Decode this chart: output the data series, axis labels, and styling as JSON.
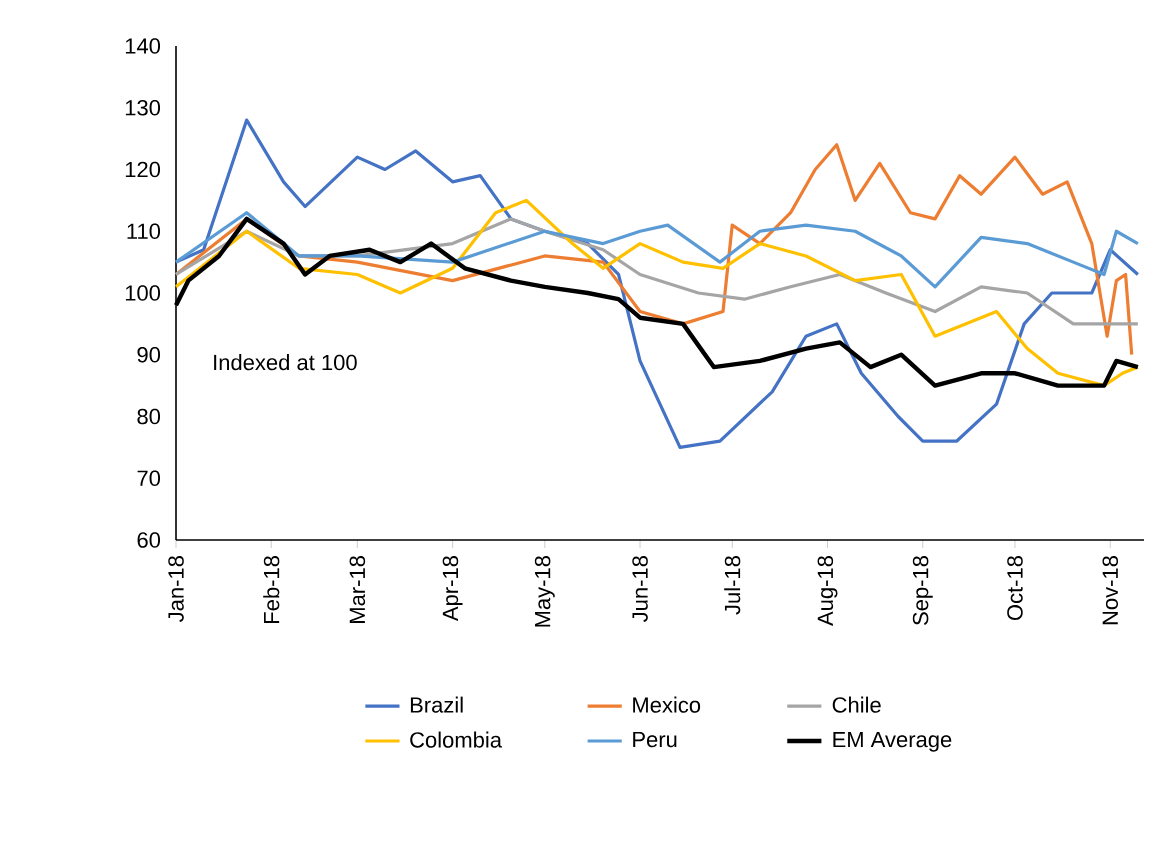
{
  "chart_data": {
    "type": "line",
    "annotations": [
      "Indexed at 100"
    ],
    "xlim": [
      "2018-01-01",
      "2018-11-12"
    ],
    "ylim": [
      60,
      140
    ],
    "yticks": [
      60,
      70,
      80,
      90,
      100,
      110,
      120,
      130,
      140
    ],
    "xticks": [
      {
        "value": "2018-01-01",
        "label": "Jan-18"
      },
      {
        "value": "2018-02-01",
        "label": "Feb-18"
      },
      {
        "value": "2018-03-01",
        "label": "Mar-18"
      },
      {
        "value": "2018-04-01",
        "label": "Apr-18"
      },
      {
        "value": "2018-05-01",
        "label": "May-18"
      },
      {
        "value": "2018-06-01",
        "label": "Jun-18"
      },
      {
        "value": "2018-07-01",
        "label": "Jul-18"
      },
      {
        "value": "2018-08-01",
        "label": "Aug-18"
      },
      {
        "value": "2018-09-01",
        "label": "Sep-18"
      },
      {
        "value": "2018-10-01",
        "label": "Oct-18"
      },
      {
        "value": "2018-11-01",
        "label": "Nov-18"
      }
    ],
    "grid": false,
    "legend": "bottom",
    "marker": "none",
    "line_style": "solid",
    "series": [
      {
        "name": "Brazil",
        "color": "#4472c4",
        "x": [
          "2018-01-01",
          "2018-01-10",
          "2018-01-24",
          "2018-02-05",
          "2018-02-12",
          "2018-03-01",
          "2018-03-10",
          "2018-03-20",
          "2018-04-01",
          "2018-04-10",
          "2018-04-20",
          "2018-05-01",
          "2018-05-15",
          "2018-05-25",
          "2018-06-01",
          "2018-06-14",
          "2018-06-27",
          "2018-07-14",
          "2018-07-25",
          "2018-08-04",
          "2018-08-12",
          "2018-08-24",
          "2018-09-01",
          "2018-09-12",
          "2018-09-25",
          "2018-10-04",
          "2018-10-13",
          "2018-10-26",
          "2018-11-01",
          "2018-11-10"
        ],
        "values": [
          105,
          107,
          128,
          118,
          114,
          122,
          120,
          123,
          118,
          119,
          112,
          110,
          108,
          103,
          89,
          75,
          76,
          84,
          93,
          95,
          87,
          80,
          76,
          76,
          82,
          95,
          100,
          100,
          107,
          103
        ]
      },
      {
        "name": "Mexico",
        "color": "#ed7d31",
        "x": [
          "2018-01-01",
          "2018-01-24",
          "2018-02-10",
          "2018-03-01",
          "2018-04-01",
          "2018-05-01",
          "2018-05-20",
          "2018-06-01",
          "2018-06-15",
          "2018-06-28",
          "2018-07-01",
          "2018-07-10",
          "2018-07-20",
          "2018-07-28",
          "2018-08-04",
          "2018-08-10",
          "2018-08-18",
          "2018-08-28",
          "2018-09-05",
          "2018-09-13",
          "2018-09-20",
          "2018-10-01",
          "2018-10-10",
          "2018-10-18",
          "2018-10-26",
          "2018-10-31",
          "2018-11-03",
          "2018-11-06",
          "2018-11-08"
        ],
        "values": [
          103,
          112,
          106,
          105,
          102,
          106,
          105,
          97,
          95,
          97,
          111,
          108,
          113,
          120,
          124,
          115,
          121,
          113,
          112,
          119,
          116,
          122,
          116,
          118,
          108,
          93,
          102,
          103,
          90
        ]
      },
      {
        "name": "Chile",
        "color": "#a5a5a5",
        "x": [
          "2018-01-01",
          "2018-01-24",
          "2018-02-10",
          "2018-03-01",
          "2018-04-01",
          "2018-04-20",
          "2018-05-01",
          "2018-05-20",
          "2018-06-01",
          "2018-06-20",
          "2018-07-05",
          "2018-07-20",
          "2018-08-05",
          "2018-08-20",
          "2018-09-05",
          "2018-09-20",
          "2018-10-05",
          "2018-10-20",
          "2018-11-03",
          "2018-11-10"
        ],
        "values": [
          103,
          110,
          106,
          106,
          108,
          112,
          110,
          107,
          103,
          100,
          99,
          101,
          103,
          100,
          97,
          101,
          100,
          95,
          95,
          95
        ]
      },
      {
        "name": "Colombia",
        "color": "#ffc000",
        "x": [
          "2018-01-01",
          "2018-01-24",
          "2018-02-10",
          "2018-03-01",
          "2018-03-15",
          "2018-04-01",
          "2018-04-15",
          "2018-04-25",
          "2018-05-10",
          "2018-05-20",
          "2018-06-01",
          "2018-06-15",
          "2018-06-28",
          "2018-07-10",
          "2018-07-25",
          "2018-08-10",
          "2018-08-25",
          "2018-09-05",
          "2018-09-15",
          "2018-09-25",
          "2018-10-05",
          "2018-10-15",
          "2018-10-30",
          "2018-11-05",
          "2018-11-10"
        ],
        "values": [
          101,
          110,
          104,
          103,
          100,
          104,
          113,
          115,
          108,
          104,
          108,
          105,
          104,
          108,
          106,
          102,
          103,
          93,
          95,
          97,
          91,
          87,
          85,
          87,
          88
        ]
      },
      {
        "name": "Peru",
        "color": "#5b9bd5",
        "x": [
          "2018-01-01",
          "2018-01-24",
          "2018-02-10",
          "2018-03-01",
          "2018-04-01",
          "2018-05-01",
          "2018-05-20",
          "2018-06-01",
          "2018-06-10",
          "2018-06-27",
          "2018-07-10",
          "2018-07-25",
          "2018-08-10",
          "2018-08-25",
          "2018-09-05",
          "2018-09-20",
          "2018-10-05",
          "2018-10-20",
          "2018-10-30",
          "2018-11-03",
          "2018-11-10"
        ],
        "values": [
          105,
          113,
          106,
          106,
          105,
          110,
          108,
          110,
          111,
          105,
          110,
          111,
          110,
          106,
          101,
          109,
          108,
          105,
          103,
          110,
          108
        ]
      },
      {
        "name": "EM Average",
        "color": "#000000",
        "x": [
          "2018-01-01",
          "2018-01-05",
          "2018-01-15",
          "2018-01-24",
          "2018-02-05",
          "2018-02-12",
          "2018-02-20",
          "2018-03-05",
          "2018-03-15",
          "2018-03-25",
          "2018-04-05",
          "2018-04-20",
          "2018-05-01",
          "2018-05-15",
          "2018-05-25",
          "2018-06-01",
          "2018-06-15",
          "2018-06-25",
          "2018-07-10",
          "2018-07-25",
          "2018-08-05",
          "2018-08-15",
          "2018-08-25",
          "2018-09-05",
          "2018-09-20",
          "2018-10-01",
          "2018-10-15",
          "2018-10-30",
          "2018-11-03",
          "2018-11-10"
        ],
        "values": [
          98,
          102,
          106,
          112,
          108,
          103,
          106,
          107,
          105,
          108,
          104,
          102,
          101,
          100,
          99,
          96,
          95,
          88,
          89,
          91,
          92,
          88,
          90,
          85,
          87,
          87,
          85,
          85,
          89,
          88
        ]
      }
    ]
  }
}
